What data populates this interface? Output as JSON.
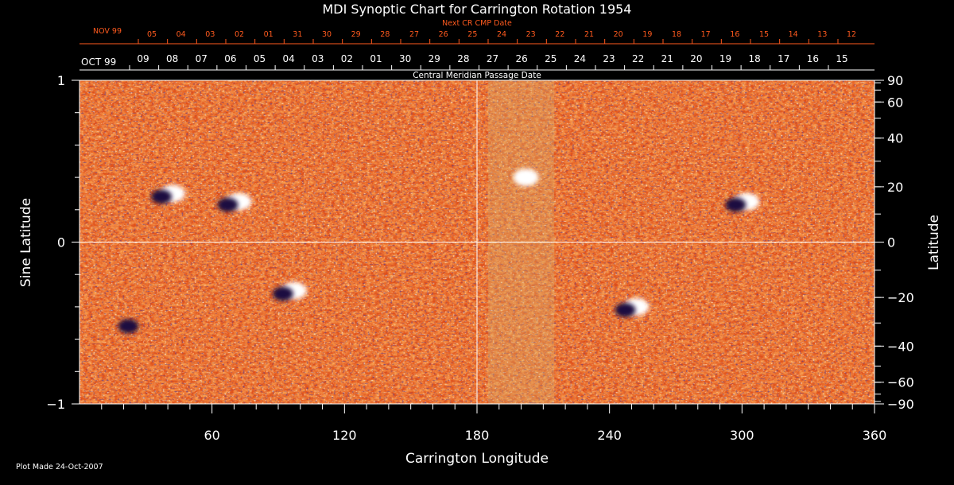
{
  "chart_data": {
    "type": "heatmap",
    "title": "MDI Synoptic Chart for Carrington Rotation 1954",
    "xlabel": "Carrington Longitude",
    "ylabel_left": "Sine Latitude",
    "ylabel_right": "Latitude",
    "xlim": [
      0,
      360
    ],
    "ylim": [
      -1,
      1
    ],
    "x_ticks": [
      60,
      120,
      180,
      240,
      300,
      360
    ],
    "y_ticks_left": [
      {
        "value": 1,
        "label": "1"
      },
      {
        "value": 0,
        "label": "0"
      },
      {
        "value": -1,
        "label": "−1"
      }
    ],
    "y_ticks_right": [
      90,
      60,
      40,
      20,
      0,
      -20,
      -40,
      -60,
      -90
    ],
    "grid_lines": {
      "longitude": 180,
      "sine_latitude": 0
    },
    "top_axis_cmp": {
      "label": "Central Meridian Passage Date",
      "month_start": "OCT 99",
      "dates": [
        "09",
        "08",
        "07",
        "06",
        "05",
        "04",
        "03",
        "02",
        "01",
        "30",
        "29",
        "28",
        "27",
        "26",
        "25",
        "24",
        "23",
        "22",
        "21",
        "20",
        "19",
        "18",
        "17",
        "16",
        "15"
      ]
    },
    "top_axis_next_cmp": {
      "label": "Next CR CMP Date",
      "month_start": "NOV 99",
      "dates": [
        "05",
        "04",
        "03",
        "02",
        "01",
        "31",
        "30",
        "29",
        "28",
        "27",
        "26",
        "25",
        "24",
        "23",
        "22",
        "21",
        "20",
        "19",
        "18",
        "17",
        "16",
        "15",
        "14",
        "13",
        "12"
      ]
    },
    "colors": {
      "background": "#000000",
      "map_base": "#e0501a",
      "positive": "#ffffff",
      "negative": "#1a0a40",
      "orange_text": "#ff5a1e"
    },
    "regions": [
      {
        "lon": 40,
        "sinlat": 0.3,
        "polarity": "mixed"
      },
      {
        "lon": 70,
        "sinlat": 0.25,
        "polarity": "mixed"
      },
      {
        "lon": 95,
        "sinlat": -0.3,
        "polarity": "mixed"
      },
      {
        "lon": 200,
        "sinlat": 0.4,
        "polarity": "positive"
      },
      {
        "lon": 250,
        "sinlat": -0.4,
        "polarity": "mixed"
      },
      {
        "lon": 300,
        "sinlat": 0.25,
        "polarity": "mixed"
      },
      {
        "lon": 25,
        "sinlat": -0.5,
        "polarity": "negative"
      }
    ]
  },
  "footer": "Plot Made 24-Oct-2007"
}
